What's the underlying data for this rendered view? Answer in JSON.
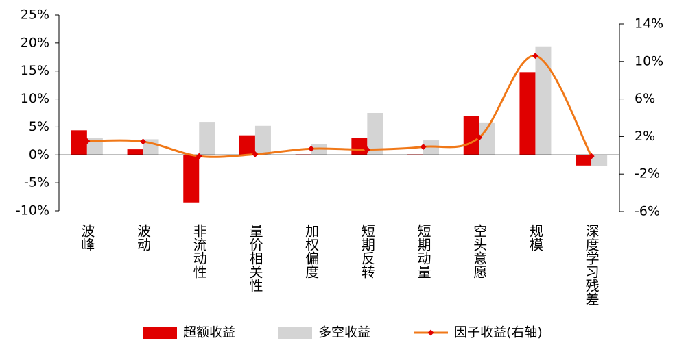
{
  "chart_data": {
    "type": "bar-line",
    "categories": [
      "波峰",
      "波动",
      "非流动性",
      "量价相关性",
      "加权偏度",
      "短期反转",
      "短期动量",
      "空头意愿",
      "规模",
      "深度学习残差"
    ],
    "series": [
      {
        "name": "超额收益",
        "color": "#e00000",
        "values": [
          4.4,
          1.0,
          -8.5,
          3.5,
          0.1,
          3.0,
          0.1,
          6.9,
          14.8,
          -1.9
        ]
      },
      {
        "name": "多空收益",
        "color": "#d4d4d4",
        "values": [
          3.0,
          2.8,
          5.9,
          5.2,
          1.9,
          7.5,
          2.6,
          5.8,
          19.4,
          -2.0
        ]
      },
      {
        "name": "因子收益(右轴)",
        "color": "#f07818",
        "marker_color": "#e00000",
        "type": "line",
        "axis": "y2",
        "values": [
          1.5,
          1.45,
          -0.1,
          0.1,
          0.7,
          0.6,
          0.9,
          1.9,
          10.6,
          -0.1
        ]
      }
    ],
    "ylim": [
      -10,
      25
    ],
    "yticks": [
      {
        "value": -10,
        "label": "-10%"
      },
      {
        "value": -5,
        "label": "-5%"
      },
      {
        "value": 0,
        "label": "0%"
      },
      {
        "value": 5,
        "label": "5%"
      },
      {
        "value": 10,
        "label": "10%"
      },
      {
        "value": 15,
        "label": "15%"
      },
      {
        "value": 20,
        "label": "20%"
      },
      {
        "value": 25,
        "label": "25%"
      }
    ],
    "y2lim": [
      -6,
      14
    ],
    "y2ticks": [
      {
        "value": -6,
        "label": "-6%"
      },
      {
        "value": -2,
        "label": "-2%"
      },
      {
        "value": 2,
        "label": "2%"
      },
      {
        "value": 6,
        "label": "6%"
      },
      {
        "value": 10,
        "label": "10%"
      },
      {
        "value": 14,
        "label": "14%"
      }
    ]
  }
}
